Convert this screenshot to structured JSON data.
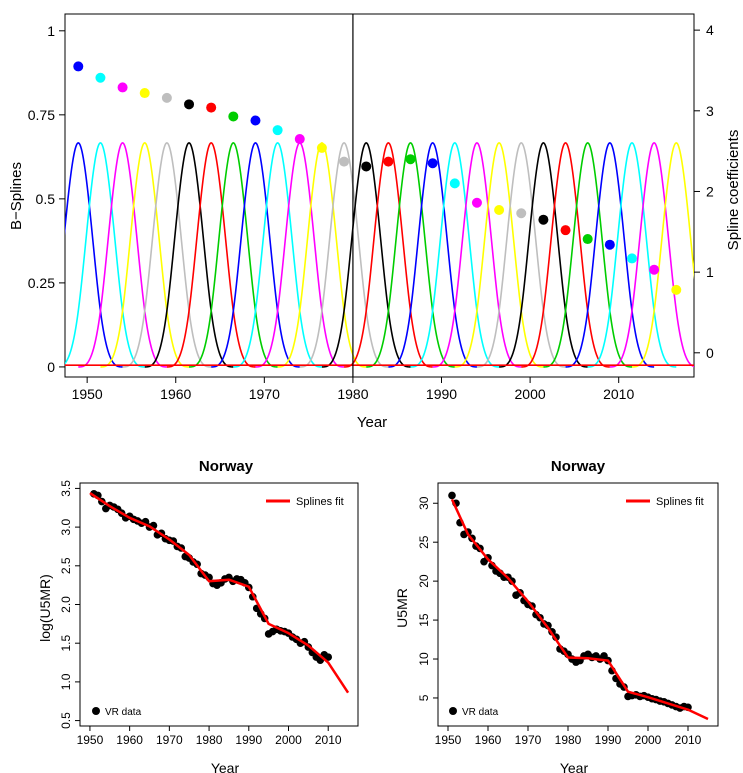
{
  "chart_data": [
    {
      "type": "line",
      "title": "",
      "xlabel": "Year",
      "ylabel": "B−Splines",
      "y2label": "Spline coefficients",
      "xlim": [
        1947.5,
        2018.5
      ],
      "ylim": [
        -0.03,
        1.05
      ],
      "y2lim": [
        -0.3,
        4.2
      ],
      "x_ticks": [
        1950,
        1960,
        1970,
        1980,
        1990,
        2000,
        2010
      ],
      "x_tick_labels": [
        "1950",
        "1960",
        "1970",
        "1980",
        "1990",
        "2000",
        "2010"
      ],
      "y_ticks": [
        0,
        0.25,
        0.5,
        0.75,
        1
      ],
      "y_tick_labels": [
        "0",
        "0.25",
        "0.5",
        "0.75",
        "1"
      ],
      "y2_ticks": [
        0,
        1,
        2,
        3,
        4
      ],
      "y2_tick_labels": [
        "0",
        "1",
        "2",
        "3",
        "4"
      ],
      "vertical_line_x": 1980,
      "grid": false,
      "spline_basis": {
        "degree": 3,
        "knot_spacing_years": 2.5,
        "peak_value": 0.6667,
        "centers": [
          1949.0,
          1951.5,
          1954.0,
          1956.5,
          1959.0,
          1961.5,
          1964.0,
          1966.5,
          1969.0,
          1971.5,
          1974.0,
          1976.5,
          1979.0,
          1981.5,
          1984.0,
          1986.5,
          1989.0,
          1991.5,
          1994.0,
          1996.5,
          1999.0,
          2001.5,
          2004.0,
          2006.5,
          2009.0,
          2011.5,
          2014.0,
          2016.5
        ],
        "color_cycle": [
          "#0000ff",
          "#00ffff",
          "#ff00ff",
          "#ffff00",
          "#bebebe",
          "#000000",
          "#ff0000",
          "#00cd00"
        ]
      },
      "coefficients": [
        {
          "x": 1949.0,
          "y": 3.55
        },
        {
          "x": 1951.5,
          "y": 3.41
        },
        {
          "x": 1954.0,
          "y": 3.29
        },
        {
          "x": 1956.5,
          "y": 3.22
        },
        {
          "x": 1959.0,
          "y": 3.16
        },
        {
          "x": 1961.5,
          "y": 3.08
        },
        {
          "x": 1964.0,
          "y": 3.04
        },
        {
          "x": 1966.5,
          "y": 2.93
        },
        {
          "x": 1969.0,
          "y": 2.88
        },
        {
          "x": 1971.5,
          "y": 2.76
        },
        {
          "x": 1974.0,
          "y": 2.65
        },
        {
          "x": 1976.5,
          "y": 2.54
        },
        {
          "x": 1979.0,
          "y": 2.37
        },
        {
          "x": 1981.5,
          "y": 2.31
        },
        {
          "x": 1984.0,
          "y": 2.37
        },
        {
          "x": 1986.5,
          "y": 2.4
        },
        {
          "x": 1989.0,
          "y": 2.35
        },
        {
          "x": 1991.5,
          "y": 2.1
        },
        {
          "x": 1994.0,
          "y": 1.86
        },
        {
          "x": 1996.5,
          "y": 1.77
        },
        {
          "x": 1999.0,
          "y": 1.73
        },
        {
          "x": 2001.5,
          "y": 1.65
        },
        {
          "x": 2004.0,
          "y": 1.52
        },
        {
          "x": 2006.5,
          "y": 1.41
        },
        {
          "x": 2009.0,
          "y": 1.34
        },
        {
          "x": 2011.5,
          "y": 1.17
        },
        {
          "x": 2014.0,
          "y": 1.03
        },
        {
          "x": 2016.5,
          "y": 0.78
        }
      ]
    },
    {
      "type": "scatter",
      "title": "Norway",
      "xlabel": "Year",
      "ylabel": "log(U5MR)",
      "xlim": [
        1947.5,
        2017.5
      ],
      "ylim": [
        0.43,
        3.57
      ],
      "x_ticks": [
        1950,
        1960,
        1970,
        1980,
        1990,
        2000,
        2010
      ],
      "x_tick_labels": [
        "1950",
        "1960",
        "1970",
        "1980",
        "1990",
        "2000",
        "2010"
      ],
      "y_ticks": [
        0.5,
        1.0,
        1.5,
        2.0,
        2.5,
        3.0,
        3.5
      ],
      "y_tick_labels": [
        "0.5",
        "1.0",
        "1.5",
        "2.0",
        "2.5",
        "3.0",
        "3.5"
      ],
      "legend_top": {
        "label": "Splines fit",
        "position": "top-right",
        "color": "#ff0000"
      },
      "legend_bottom": {
        "label": "VR data",
        "position": "bottom-left",
        "color": "#000000"
      },
      "series": [
        {
          "name": "VR data",
          "x": [
            1951,
            1952,
            1953,
            1954,
            1955,
            1956,
            1957,
            1958,
            1959,
            1960,
            1961,
            1962,
            1963,
            1964,
            1965,
            1966,
            1967,
            1968,
            1969,
            1970,
            1971,
            1972,
            1973,
            1974,
            1975,
            1976,
            1977,
            1978,
            1979,
            1980,
            1981,
            1982,
            1983,
            1984,
            1985,
            1986,
            1987,
            1988,
            1989,
            1990,
            1991,
            1992,
            1993,
            1994,
            1995,
            1996,
            1997,
            1998,
            1999,
            2000,
            2001,
            2002,
            2003,
            2004,
            2005,
            2006,
            2007,
            2008,
            2009,
            2010
          ],
          "y": [
            3.43,
            3.41,
            3.33,
            3.24,
            3.28,
            3.26,
            3.23,
            3.18,
            3.12,
            3.14,
            3.1,
            3.08,
            3.05,
            3.07,
            3.0,
            3.02,
            2.9,
            2.92,
            2.85,
            2.83,
            2.82,
            2.75,
            2.73,
            2.62,
            2.6,
            2.55,
            2.52,
            2.4,
            2.38,
            2.35,
            2.27,
            2.25,
            2.28,
            2.33,
            2.35,
            2.3,
            2.33,
            2.32,
            2.28,
            2.22,
            2.1,
            1.95,
            1.88,
            1.82,
            1.62,
            1.65,
            1.68,
            1.66,
            1.65,
            1.63,
            1.58,
            1.55,
            1.5,
            1.52,
            1.45,
            1.38,
            1.32,
            1.28,
            1.35,
            1.32
          ]
        },
        {
          "name": "Splines fit",
          "x": [
            1950,
            1955,
            1960,
            1965,
            1970,
            1975,
            1980,
            1985,
            1990,
            1995,
            2000,
            2005,
            2010,
            2015
          ],
          "y": [
            3.44,
            3.27,
            3.12,
            3.01,
            2.84,
            2.64,
            2.3,
            2.32,
            2.23,
            1.75,
            1.63,
            1.47,
            1.25,
            0.86
          ]
        }
      ]
    },
    {
      "type": "scatter",
      "title": "Norway",
      "xlabel": "Year",
      "ylabel": "U5MR",
      "xlim": [
        1947.5,
        2017.5
      ],
      "ylim": [
        1.4,
        32.6
      ],
      "x_ticks": [
        1950,
        1960,
        1970,
        1980,
        1990,
        2000,
        2010
      ],
      "x_tick_labels": [
        "1950",
        "1960",
        "1970",
        "1980",
        "1990",
        "2000",
        "2010"
      ],
      "y_ticks": [
        5,
        10,
        15,
        20,
        25,
        30
      ],
      "y_tick_labels": [
        "5",
        "10",
        "15",
        "20",
        "25",
        "30"
      ],
      "legend_top": {
        "label": "Splines fit",
        "position": "top-right",
        "color": "#ff0000"
      },
      "legend_bottom": {
        "label": "VR data",
        "position": "bottom-left",
        "color": "#000000"
      },
      "series": [
        {
          "name": "VR data",
          "x": [
            1951,
            1952,
            1953,
            1954,
            1955,
            1956,
            1957,
            1958,
            1959,
            1960,
            1961,
            1962,
            1963,
            1964,
            1965,
            1966,
            1967,
            1968,
            1969,
            1970,
            1971,
            1972,
            1973,
            1974,
            1975,
            1976,
            1977,
            1978,
            1979,
            1980,
            1981,
            1982,
            1983,
            1984,
            1985,
            1986,
            1987,
            1988,
            1989,
            1990,
            1991,
            1992,
            1993,
            1994,
            1995,
            1996,
            1997,
            1998,
            1999,
            2000,
            2001,
            2002,
            2003,
            2004,
            2005,
            2006,
            2007,
            2008,
            2009,
            2010
          ],
          "y": [
            31.0,
            30.0,
            27.5,
            26.0,
            26.3,
            25.5,
            24.5,
            24.2,
            22.5,
            23.0,
            22.0,
            21.3,
            21.0,
            20.5,
            20.5,
            20.0,
            18.2,
            18.5,
            17.5,
            17.0,
            16.8,
            15.7,
            15.3,
            14.5,
            14.3,
            13.5,
            12.8,
            11.3,
            11.0,
            10.6,
            10.0,
            9.6,
            9.8,
            10.4,
            10.6,
            10.2,
            10.4,
            10.0,
            10.4,
            9.8,
            8.5,
            7.5,
            6.8,
            6.4,
            5.2,
            5.3,
            5.4,
            5.2,
            5.3,
            5.1,
            4.9,
            4.8,
            4.6,
            4.5,
            4.3,
            4.1,
            3.9,
            3.7,
            3.9,
            3.8
          ]
        },
        {
          "name": "Splines fit",
          "x": [
            1951,
            1955,
            1960,
            1965,
            1970,
            1975,
            1980,
            1985,
            1990,
            1995,
            2000,
            2005,
            2010,
            2015
          ],
          "y": [
            30.5,
            26.0,
            22.8,
            20.4,
            17.4,
            14.0,
            10.2,
            10.1,
            9.8,
            5.8,
            5.1,
            4.3,
            3.5,
            2.3
          ]
        }
      ]
    }
  ]
}
